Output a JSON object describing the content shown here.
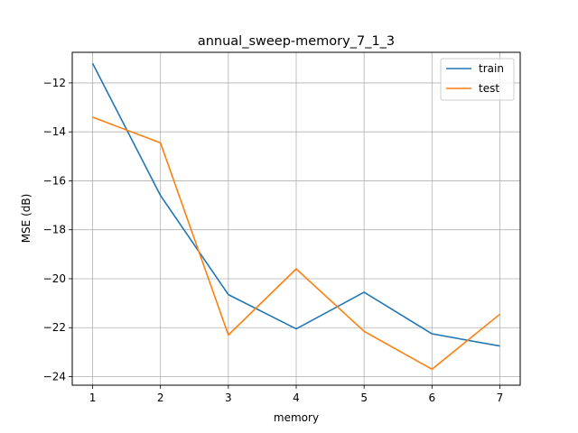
{
  "chart_data": {
    "type": "line",
    "title": "annual_sweep-memory_7_1_3",
    "xlabel": "memory",
    "ylabel": "MSE (dB)",
    "x": [
      1,
      2,
      3,
      4,
      5,
      6,
      7
    ],
    "xlim": [
      0.7,
      7.3
    ],
    "ylim": [
      -24.35,
      -10.75
    ],
    "xticks": [
      1,
      2,
      3,
      4,
      5,
      6,
      7
    ],
    "yticks": [
      -24,
      -22,
      -20,
      -18,
      -16,
      -14,
      -12
    ],
    "ytick_labels": [
      "−24",
      "−22",
      "−20",
      "−18",
      "−16",
      "−14",
      "−12"
    ],
    "grid": true,
    "legend_position": "top-right",
    "series": [
      {
        "name": "train",
        "color": "#1f77b4",
        "values": [
          -11.2,
          -16.6,
          -20.65,
          -22.05,
          -20.55,
          -22.25,
          -22.75
        ]
      },
      {
        "name": "test",
        "color": "#ff7f0e",
        "values": [
          -13.4,
          -14.45,
          -22.3,
          -19.6,
          -22.15,
          -23.7,
          -21.45
        ]
      }
    ]
  }
}
